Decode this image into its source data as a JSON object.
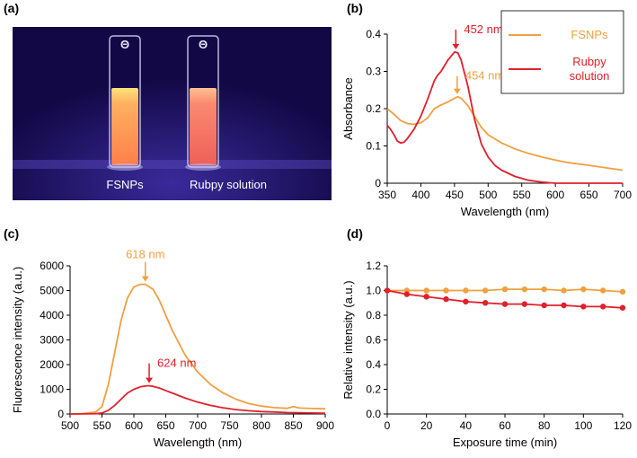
{
  "colors": {
    "fsnps": "#F0A040",
    "rubpy": "#E0202C",
    "photo_bg": "#170C4F"
  },
  "panels": {
    "a": {
      "letter": "(a)",
      "labels": [
        "FSNPs",
        "Rubpy solution"
      ],
      "vial_cap_symbol": "Θ",
      "vial_liquids": [
        "#FF8C4E",
        "#F46C5B"
      ]
    },
    "b": {
      "letter": "(b)"
    },
    "c": {
      "letter": "(c)"
    },
    "d": {
      "letter": "(d)"
    }
  },
  "chart_data": [
    {
      "id": "b",
      "type": "line",
      "xlabel": "Wavelength (nm)",
      "ylabel": "Absorbance",
      "xlim": [
        350,
        700
      ],
      "ylim": [
        0,
        0.4
      ],
      "xticks": [
        "350",
        "400",
        "450",
        "500",
        "550",
        "600",
        "650",
        "700"
      ],
      "yticks": [
        "0",
        "0.1",
        "0.2",
        "0.3",
        "0.4"
      ],
      "legend": {
        "position": "top-right",
        "entries": [
          "FSNPs",
          "Rubpy\nsolution"
        ]
      },
      "series": [
        {
          "name": "FSNPs",
          "color": "#F0A040",
          "x": [
            350,
            360,
            370,
            380,
            390,
            400,
            410,
            420,
            430,
            440,
            450,
            455,
            460,
            470,
            480,
            490,
            500,
            520,
            540,
            560,
            580,
            600,
            620,
            650,
            680,
            700
          ],
          "y": [
            0.2,
            0.185,
            0.168,
            0.16,
            0.158,
            0.162,
            0.175,
            0.2,
            0.21,
            0.218,
            0.228,
            0.232,
            0.228,
            0.208,
            0.178,
            0.15,
            0.13,
            0.108,
            0.092,
            0.08,
            0.07,
            0.062,
            0.055,
            0.048,
            0.04,
            0.035
          ]
        },
        {
          "name": "Rubpy solution",
          "color": "#E0202C",
          "x": [
            350,
            355,
            360,
            365,
            370,
            375,
            380,
            390,
            400,
            410,
            420,
            425,
            430,
            440,
            450,
            455,
            460,
            470,
            480,
            490,
            500,
            510,
            520,
            540,
            560,
            580,
            600,
            650,
            700
          ],
          "y": [
            0.155,
            0.145,
            0.13,
            0.113,
            0.108,
            0.11,
            0.12,
            0.145,
            0.18,
            0.225,
            0.275,
            0.29,
            0.3,
            0.33,
            0.352,
            0.35,
            0.33,
            0.26,
            0.17,
            0.105,
            0.07,
            0.048,
            0.035,
            0.018,
            0.008,
            0.003,
            0.0,
            0.0,
            0.0
          ]
        }
      ],
      "annotations": [
        {
          "text": "452 nm",
          "x": 452,
          "y": 0.352,
          "color": "#E0202C",
          "text_side": "right",
          "arrow_rise": 22
        },
        {
          "text": "454 nm",
          "x": 454,
          "y": 0.232,
          "color": "#F0A040",
          "text_side": "right",
          "arrow_rise": 20
        }
      ]
    },
    {
      "id": "c",
      "type": "line",
      "xlabel": "Wavelength (nm)",
      "ylabel": "Fluorescence intensity (a.u.)",
      "xlim": [
        500,
        900
      ],
      "ylim": [
        0,
        6000
      ],
      "xticks": [
        "500",
        "550",
        "600",
        "650",
        "700",
        "750",
        "800",
        "850",
        "900"
      ],
      "yticks": [
        "0",
        "1000",
        "2000",
        "3000",
        "4000",
        "5000",
        "6000"
      ],
      "series": [
        {
          "name": "FSNPs",
          "color": "#F0A040",
          "x": [
            500,
            520,
            540,
            550,
            560,
            570,
            580,
            590,
            600,
            610,
            618,
            630,
            640,
            650,
            660,
            680,
            700,
            720,
            740,
            760,
            780,
            800,
            820,
            840,
            850,
            860,
            880,
            900
          ],
          "y": [
            0,
            10,
            80,
            300,
            1200,
            2500,
            3800,
            4700,
            5150,
            5250,
            5250,
            5050,
            4600,
            4000,
            3400,
            2400,
            1700,
            1200,
            850,
            600,
            420,
            320,
            260,
            230,
            300,
            240,
            220,
            210
          ]
        },
        {
          "name": "Rubpy solution",
          "color": "#E0202C",
          "x": [
            500,
            540,
            550,
            560,
            570,
            580,
            590,
            600,
            610,
            620,
            624,
            630,
            640,
            650,
            660,
            680,
            700,
            720,
            740,
            760,
            780,
            800,
            820,
            840,
            860,
            880,
            900
          ],
          "y": [
            0,
            10,
            40,
            150,
            350,
            600,
            850,
            1000,
            1100,
            1140,
            1140,
            1120,
            1050,
            950,
            850,
            650,
            480,
            350,
            250,
            180,
            130,
            100,
            80,
            60,
            50,
            40,
            30
          ]
        }
      ],
      "annotations": [
        {
          "text": "618 nm",
          "x": 618,
          "y": 5250,
          "color": "#F0A040",
          "text_side": "above",
          "arrow_rise": 22
        },
        {
          "text": "624 nm",
          "x": 624,
          "y": 1140,
          "color": "#E0202C",
          "text_side": "right",
          "arrow_rise": 22
        }
      ]
    },
    {
      "id": "d",
      "type": "line",
      "xlabel": "Exposure time (min)",
      "ylabel": "Relative intensity (a.u.)",
      "xlim": [
        0,
        120
      ],
      "ylim": [
        0,
        1.2
      ],
      "xticks": [
        "0",
        "20",
        "40",
        "60",
        "80",
        "100",
        "120"
      ],
      "yticks": [
        "0.0",
        "0.2",
        "0.4",
        "0.6",
        "0.8",
        "1.0",
        "1.2"
      ],
      "markers": true,
      "series": [
        {
          "name": "FSNPs",
          "color": "#F0A040",
          "x": [
            0,
            10,
            20,
            30,
            40,
            50,
            60,
            70,
            80,
            90,
            100,
            110,
            120
          ],
          "y": [
            1.0,
            1.0,
            1.0,
            1.0,
            1.0,
            1.0,
            1.01,
            1.01,
            1.01,
            1.0,
            1.01,
            1.0,
            0.99
          ]
        },
        {
          "name": "Rubpy solution",
          "color": "#E0202C",
          "x": [
            0,
            10,
            20,
            30,
            40,
            50,
            60,
            70,
            80,
            90,
            100,
            110,
            120
          ],
          "y": [
            1.0,
            0.97,
            0.95,
            0.93,
            0.91,
            0.9,
            0.89,
            0.89,
            0.88,
            0.88,
            0.87,
            0.87,
            0.86
          ]
        }
      ]
    }
  ]
}
